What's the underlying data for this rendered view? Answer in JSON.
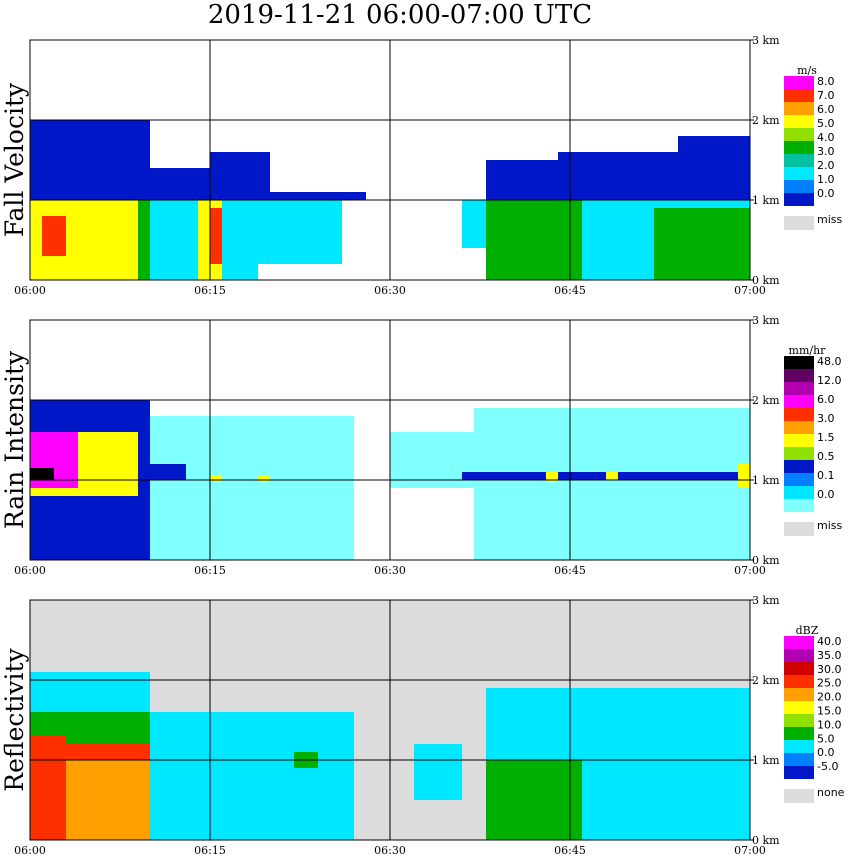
{
  "title": "2019-11-21   06:00-07:00 UTC",
  "chart_data": [
    {
      "type": "heatmap",
      "ylabel": "Fall Velocity",
      "x_ticks": [
        "06:00",
        "06:15",
        "06:30",
        "06:45",
        "07:00"
      ],
      "y_ticks": [
        "0 km",
        "1 km",
        "2 km",
        "3 km"
      ],
      "xlim_minutes": [
        0,
        60
      ],
      "ylim_km": [
        0,
        3.0
      ],
      "background": "#ffffff",
      "colorbar": {
        "unit": "m/s",
        "colors": [
          "#0018c8",
          "#0080ff",
          "#00e8ff",
          "#00c0a0",
          "#00b000",
          "#90e000",
          "#ffff00",
          "#ffa000",
          "#ff3000",
          "#ff00ff"
        ],
        "labels": [
          "8.0",
          "7.0",
          "6.0",
          "5.0",
          "4.0",
          "3.0",
          "2.0",
          "1.0",
          "0.0"
        ],
        "missing_label": "miss",
        "missing_color": "#dcdcdc"
      },
      "layers": [
        {
          "name": "upper-fall-speed",
          "color": "#0018c8",
          "segments": [
            [
              0,
              10,
              1.0,
              2.0
            ],
            [
              10,
              15,
              1.0,
              1.4
            ],
            [
              15,
              20,
              1.0,
              1.6
            ],
            [
              20,
              28,
              1.0,
              1.1
            ],
            [
              38,
              44,
              1.0,
              1.5
            ],
            [
              44,
              54,
              1.0,
              1.6
            ],
            [
              54,
              60,
              1.0,
              1.8
            ]
          ]
        },
        {
          "name": "lower-fall-speed",
          "color": "#00e8ff",
          "segments": [
            [
              10,
              16,
              0,
              1.0
            ],
            [
              16,
              19,
              0,
              1.0
            ],
            [
              19,
              26,
              0.2,
              1.0
            ],
            [
              36,
              38,
              0.4,
              1.0
            ],
            [
              38,
              60,
              0,
              1.0
            ]
          ]
        },
        {
          "name": "lower-fall-speed-fast",
          "color": "#00b000",
          "segments": [
            [
              0,
              10,
              0,
              1.0
            ],
            [
              38,
              46,
              0,
              1.0
            ],
            [
              52,
              60,
              0,
              0.9
            ]
          ]
        },
        {
          "name": "lower-fall-speed-peak",
          "color": "#ffff00",
          "segments": [
            [
              0,
              9,
              0,
              1.0
            ],
            [
              14,
              16,
              0,
              1.0
            ]
          ]
        },
        {
          "name": "lower-fall-speed-max",
          "color": "#ff3000",
          "segments": [
            [
              1,
              3,
              0.3,
              0.8
            ],
            [
              15,
              16,
              0.2,
              0.9
            ]
          ]
        }
      ]
    },
    {
      "type": "heatmap",
      "ylabel": "Rain Intensity",
      "x_ticks": [
        "06:00",
        "06:15",
        "06:30",
        "06:45",
        "07:00"
      ],
      "y_ticks": [
        "0 km",
        "1 km",
        "2 km",
        "3 km"
      ],
      "xlim_minutes": [
        0,
        60
      ],
      "ylim_km": [
        0,
        3.0
      ],
      "background": "#ffffff",
      "colorbar": {
        "unit": "mm/hr",
        "colors": [
          "#80ffff",
          "#00e8ff",
          "#0080ff",
          "#0018c8",
          "#90e000",
          "#ffff00",
          "#ffa000",
          "#ff3000",
          "#ff00ff",
          "#b000b0",
          "#600060",
          "#000000"
        ],
        "labels": [
          "48.0",
          "12.0",
          "6.0",
          "3.0",
          "1.5",
          "0.5",
          "0.1",
          "0.0"
        ],
        "missing_label": "miss",
        "missing_color": "#dcdcdc"
      },
      "layers": [
        {
          "name": "light-rain",
          "color": "#80ffff",
          "segments": [
            [
              10,
              27,
              0,
              1.8
            ],
            [
              30,
              37,
              0.9,
              1.6
            ],
            [
              37,
              60,
              0,
              1.9
            ]
          ]
        },
        {
          "name": "moderate-rain",
          "color": "#0018c8",
          "segments": [
            [
              0,
              10,
              0,
              2.0
            ],
            [
              10,
              13,
              1.0,
              1.2
            ],
            [
              36,
              60,
              1.0,
              1.1
            ]
          ]
        },
        {
          "name": "heavy-rain",
          "color": "#ffff00",
          "segments": [
            [
              0,
              9,
              0.8,
              1.6
            ],
            [
              15,
              16,
              0.98,
              1.06
            ],
            [
              19,
              20,
              0.98,
              1.06
            ],
            [
              43,
              44,
              0.98,
              1.1
            ],
            [
              48,
              49,
              1.0,
              1.1
            ],
            [
              59,
              60,
              0.9,
              1.2
            ]
          ]
        },
        {
          "name": "very-heavy-rain",
          "color": "#ff00ff",
          "segments": [
            [
              0,
              4,
              0.9,
              1.6
            ]
          ]
        },
        {
          "name": "extreme-rain",
          "color": "#000000",
          "segments": [
            [
              0,
              2,
              1.0,
              1.15
            ]
          ]
        }
      ]
    },
    {
      "type": "heatmap",
      "ylabel": "Reflectivity",
      "x_ticks": [
        "06:00",
        "06:15",
        "06:30",
        "06:45",
        "07:00"
      ],
      "y_ticks": [
        "0 km",
        "1 km",
        "2 km",
        "3 km"
      ],
      "xlim_minutes": [
        0,
        60
      ],
      "ylim_km": [
        0,
        3.0
      ],
      "background": "#dcdcdc",
      "colorbar": {
        "unit": "dBZ",
        "colors": [
          "#0018c8",
          "#0080ff",
          "#00e8ff",
          "#00b000",
          "#90e000",
          "#ffff00",
          "#ffa000",
          "#ff3000",
          "#d00000",
          "#b000b0",
          "#ff00ff"
        ],
        "labels": [
          "40.0",
          "35.0",
          "30.0",
          "25.0",
          "20.0",
          "15.0",
          "10.0",
          "5.0",
          "0.0",
          "-5.0"
        ],
        "missing_label": "none",
        "missing_color": "#dcdcdc"
      },
      "layers": [
        {
          "name": "echo-low",
          "color": "#00e8ff",
          "segments": [
            [
              0,
              10,
              1.0,
              2.1
            ],
            [
              10,
              27,
              0,
              1.6
            ],
            [
              32,
              36,
              0.5,
              1.2
            ],
            [
              38,
              60,
              0,
              1.9
            ]
          ]
        },
        {
          "name": "echo-mid",
          "color": "#00b000",
          "segments": [
            [
              0,
              10,
              0.9,
              1.6
            ],
            [
              22,
              24,
              0.9,
              1.1
            ],
            [
              38,
              46,
              0,
              1.0
            ]
          ]
        },
        {
          "name": "echo-high",
          "color": "#ffa000",
          "segments": [
            [
              0,
              10,
              0,
              1.0
            ]
          ]
        },
        {
          "name": "echo-max",
          "color": "#ff3000",
          "segments": [
            [
              0,
              3,
              0,
              1.3
            ],
            [
              0,
              10,
              1.0,
              1.2
            ]
          ]
        }
      ]
    }
  ]
}
